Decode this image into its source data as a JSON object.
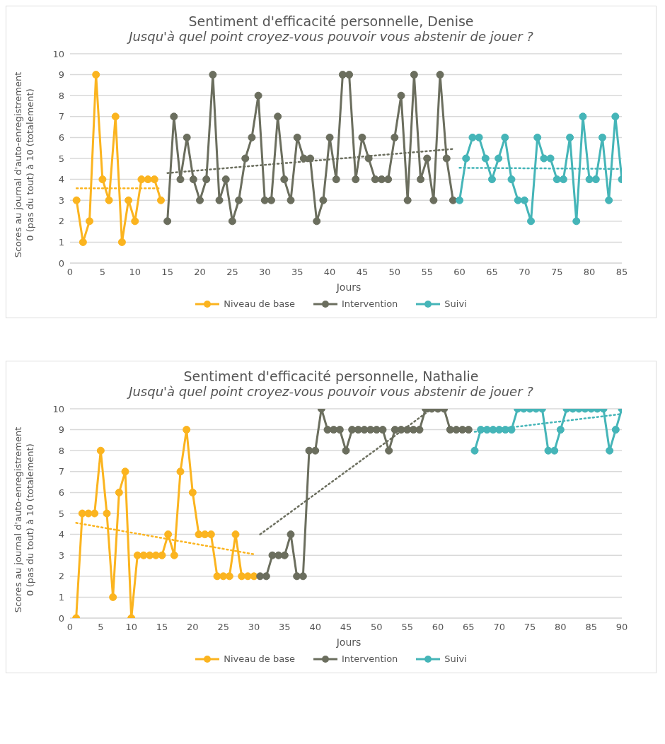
{
  "chart_data": [
    {
      "type": "line",
      "title": "Sentiment d'efficacité personnelle, Denise",
      "subtitle": "Jusqu'à quel point croyez-vous pouvoir vous abstenir de jouer ?",
      "xlabel": "Jours",
      "ylabel": "Scores au journal d'auto-enregistrement\n0 (pas du tout) à 10 (totalement)",
      "xlim": [
        0,
        85
      ],
      "xticks": [
        0,
        5,
        10,
        15,
        20,
        25,
        30,
        35,
        40,
        45,
        50,
        55,
        60,
        65,
        70,
        75,
        80,
        85
      ],
      "ylim": [
        0,
        10
      ],
      "yticks": [
        0,
        1,
        2,
        3,
        4,
        5,
        6,
        7,
        8,
        9,
        10
      ],
      "grid": "y",
      "legend": "bottom",
      "marker": "circle",
      "line_style": "solid",
      "series": [
        {
          "name": "Niveau de base",
          "color": "#fbb41f",
          "x": [
            1,
            2,
            3,
            4,
            5,
            6,
            7,
            8,
            9,
            10,
            11,
            12,
            13,
            14
          ],
          "values": [
            3,
            1,
            2,
            9,
            4,
            3,
            7,
            1,
            3,
            2,
            4,
            4,
            4,
            3
          ]
        },
        {
          "name": "Intervention",
          "color": "#6b6e5e",
          "x": [
            15,
            16,
            17,
            18,
            19,
            20,
            21,
            22,
            23,
            24,
            25,
            26,
            27,
            28,
            29,
            30,
            31,
            32,
            33,
            34,
            35,
            36,
            37,
            38,
            39,
            40,
            41,
            42,
            43,
            44,
            45,
            46,
            47,
            48,
            49,
            50,
            51,
            52,
            53,
            54,
            55,
            56,
            57,
            58,
            59
          ],
          "values": [
            2,
            7,
            4,
            6,
            4,
            3,
            4,
            9,
            3,
            4,
            2,
            3,
            5,
            6,
            8,
            3,
            3,
            7,
            4,
            3,
            6,
            5,
            5,
            2,
            3,
            6,
            4,
            9,
            9,
            4,
            6,
            5,
            4,
            4,
            4,
            6,
            8,
            3,
            9,
            4,
            5,
            3,
            9,
            5,
            3
          ]
        },
        {
          "name": "Suivi",
          "color": "#45b5b8",
          "x": [
            60,
            61,
            62,
            63,
            64,
            65,
            66,
            67,
            68,
            69,
            70,
            71,
            72,
            73,
            74,
            75,
            76,
            77,
            78,
            79,
            80,
            81,
            82,
            83,
            84,
            85
          ],
          "values": [
            3,
            5,
            6,
            6,
            5,
            4,
            5,
            6,
            4,
            3,
            3,
            2,
            6,
            5,
            5,
            4,
            4,
            6,
            2,
            7,
            4,
            4,
            6,
            3,
            7,
            4
          ]
        },
        {
          "type": "line",
          "color": "#fbb41f",
          "line_style": "dotted",
          "marker": "none",
          "x": [
            1,
            14
          ],
          "values": [
            3.57,
            3.57
          ]
        },
        {
          "type": "line",
          "color": "#6b6e5e",
          "line_style": "dotted",
          "marker": "none",
          "x": [
            15,
            59
          ],
          "values": [
            4.3,
            5.45
          ]
        },
        {
          "type": "line",
          "color": "#45b5b8",
          "line_style": "dotted",
          "marker": "none",
          "x": [
            60,
            85
          ],
          "values": [
            4.55,
            4.5
          ]
        }
      ]
    },
    {
      "type": "line",
      "title": "Sentiment d'efficacité personnelle, Nathalie",
      "subtitle": "Jusqu'à quel point croyez-vous pouvoir vous abstenir de jouer ?",
      "xlabel": "Jours",
      "ylabel": "Scores au journal d'auto-enregistrement\n0 (pas du tout) à 10 (totalement)",
      "xlim": [
        0,
        90
      ],
      "xticks": [
        0,
        5,
        10,
        15,
        20,
        25,
        30,
        35,
        40,
        45,
        50,
        55,
        60,
        65,
        70,
        75,
        80,
        85,
        90
      ],
      "ylim": [
        0,
        10
      ],
      "yticks": [
        0,
        1,
        2,
        3,
        4,
        5,
        6,
        7,
        8,
        9,
        10
      ],
      "grid": "y",
      "legend": "bottom",
      "marker": "circle",
      "line_style": "solid",
      "series": [
        {
          "name": "Niveau de base",
          "color": "#fbb41f",
          "x": [
            1,
            2,
            3,
            4,
            5,
            6,
            7,
            8,
            9,
            10,
            11,
            12,
            13,
            14,
            15,
            16,
            17,
            18,
            19,
            20,
            21,
            22,
            23,
            24,
            25,
            26,
            27,
            28,
            29,
            30
          ],
          "values": [
            0,
            5,
            5,
            5,
            8,
            5,
            1,
            6,
            7,
            0,
            3,
            3,
            3,
            3,
            3,
            4,
            3,
            7,
            9,
            6,
            4,
            4,
            4,
            2,
            2,
            2,
            4,
            2,
            2,
            2
          ]
        },
        {
          "name": "Intervention",
          "color": "#6b6e5e",
          "x": [
            31,
            32,
            33,
            34,
            35,
            36,
            37,
            38,
            39,
            40,
            41,
            42,
            43,
            44,
            45,
            46,
            47,
            48,
            49,
            50,
            51,
            52,
            53,
            54,
            55,
            56,
            57,
            58,
            59,
            60,
            61,
            62,
            63,
            64,
            65
          ],
          "values": [
            2,
            2,
            3,
            3,
            3,
            4,
            2,
            2,
            8,
            8,
            10,
            9,
            9,
            9,
            8,
            9,
            9,
            9,
            9,
            9,
            9,
            8,
            9,
            9,
            9,
            9,
            9,
            10,
            10,
            10,
            10,
            9,
            9,
            9,
            9
          ]
        },
        {
          "name": "Suivi",
          "color": "#45b5b8",
          "x": [
            66,
            67,
            68,
            69,
            70,
            71,
            72,
            73,
            74,
            75,
            76,
            77,
            78,
            79,
            80,
            81,
            82,
            83,
            84,
            85,
            86,
            87,
            88,
            89,
            90
          ],
          "values": [
            8,
            9,
            9,
            9,
            9,
            9,
            9,
            10,
            10,
            10,
            10,
            10,
            8,
            8,
            9,
            10,
            10,
            10,
            10,
            10,
            10,
            10,
            8,
            9,
            10
          ]
        },
        {
          "type": "line",
          "color": "#fbb41f",
          "line_style": "dotted",
          "marker": "none",
          "x": [
            1,
            30
          ],
          "values": [
            4.55,
            3.05
          ]
        },
        {
          "type": "line",
          "color": "#6b6e5e",
          "line_style": "dotted",
          "marker": "none",
          "x": [
            31,
            59
          ],
          "values": [
            4,
            10
          ]
        },
        {
          "type": "line",
          "color": "#45b5b8",
          "line_style": "dotted",
          "marker": "none",
          "x": [
            66,
            90
          ],
          "values": [
            8.9,
            9.75
          ]
        }
      ]
    }
  ]
}
